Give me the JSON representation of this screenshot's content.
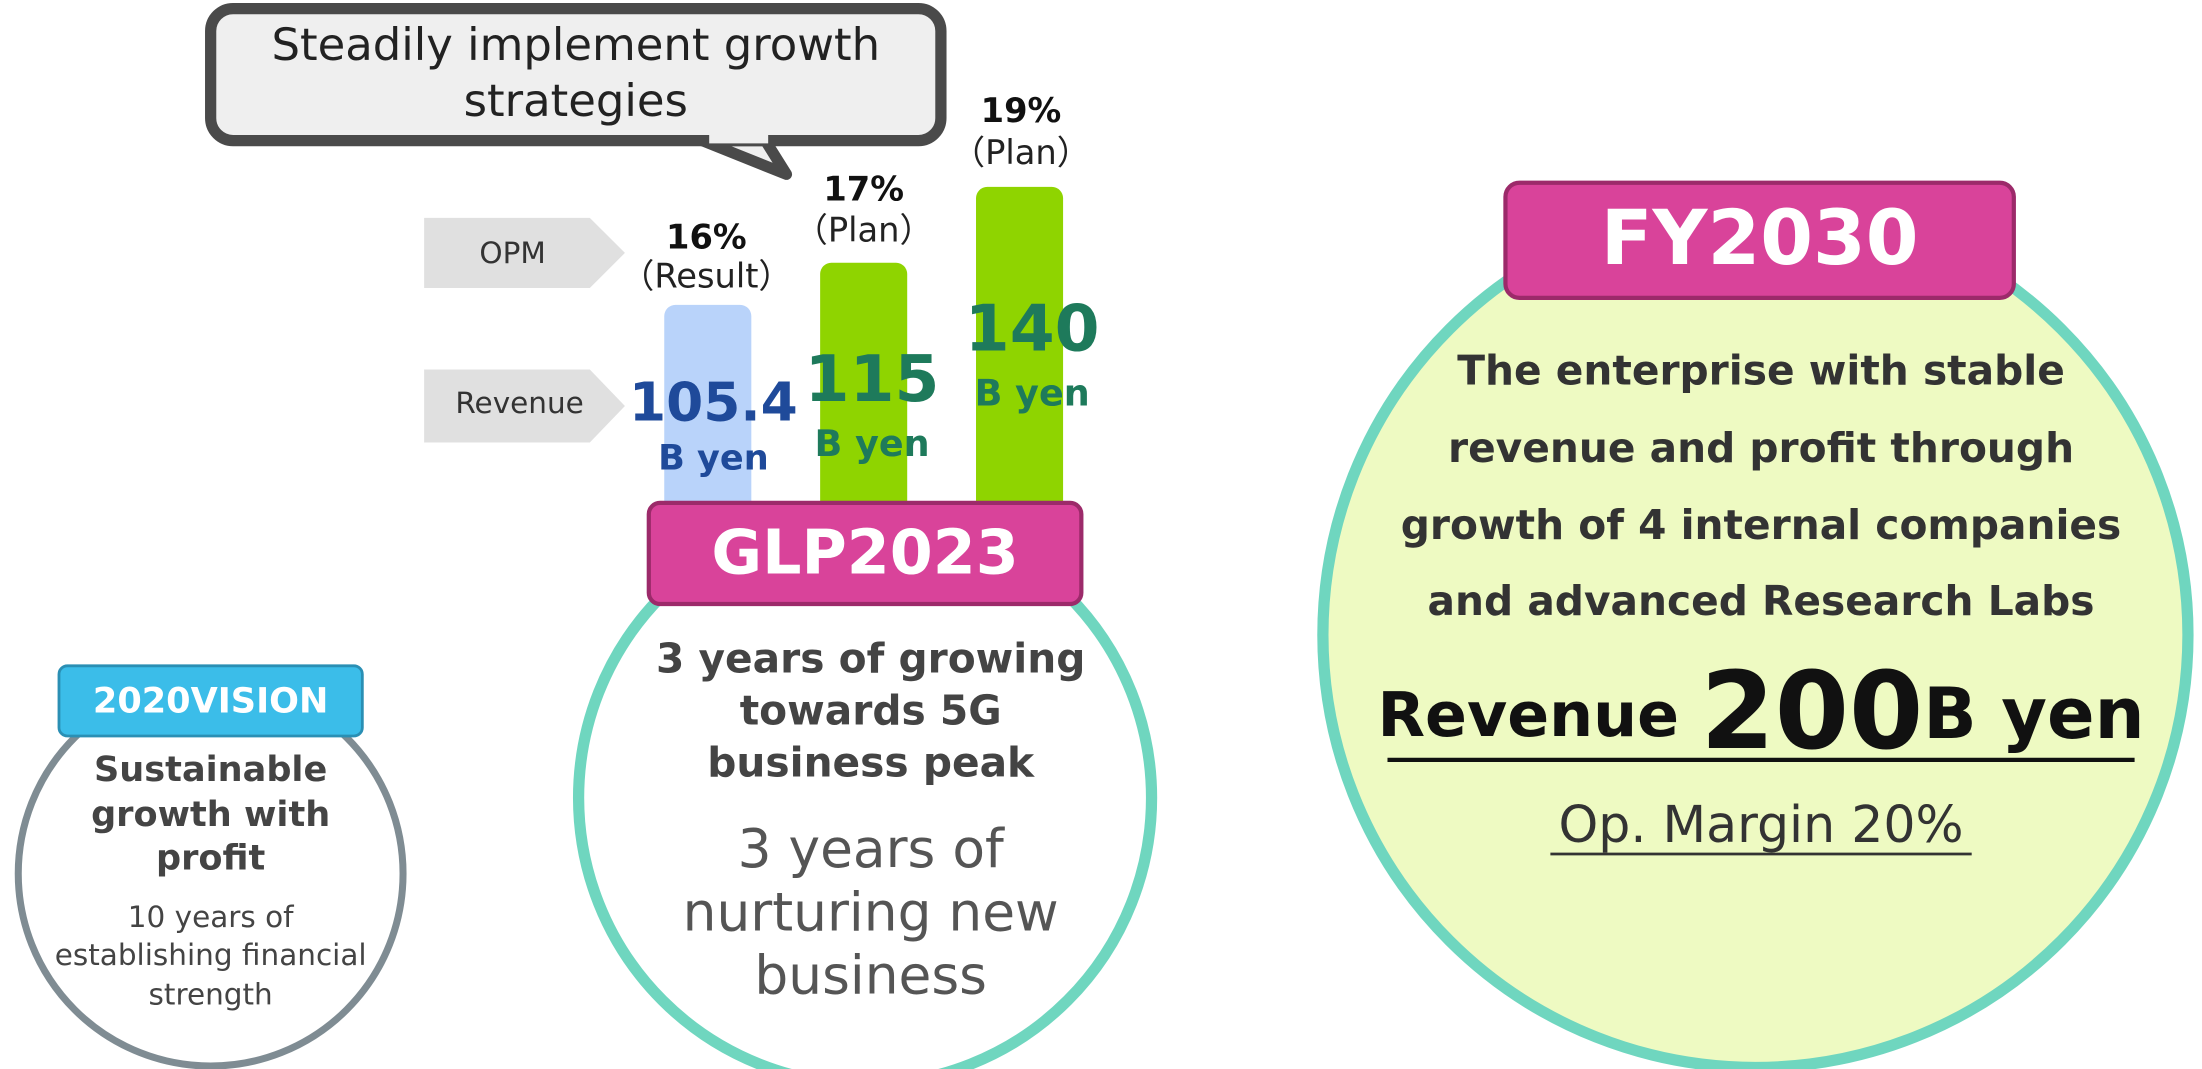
{
  "callout": [
    "Steadily implement growth",
    "strategies"
  ],
  "row_labels": [
    "OPM",
    "Revenue"
  ],
  "bars": [
    {
      "opm": "16%",
      "status": "（Result）",
      "revenue": "105.4",
      "unit": "B yen"
    },
    {
      "opm": "17%",
      "status": "（Plan）",
      "revenue": "115",
      "unit": "B yen"
    },
    {
      "opm": "19%",
      "status": "（Plan）",
      "revenue": "140",
      "unit": "B yen"
    }
  ],
  "vision2020": {
    "badge": "2020VISION",
    "title": [
      "Sustainable",
      "growth with",
      "profit"
    ],
    "text": [
      "10 years of",
      "establishing financial",
      "strength"
    ]
  },
  "glp2023": {
    "badge": "GLP2023",
    "title": [
      "3 years of growing",
      "towards 5G",
      "business peak"
    ],
    "text": [
      "3 years of",
      "nurturing new",
      "business"
    ]
  },
  "fy2030": {
    "badge": "FY2030",
    "text": [
      "The enterprise with stable",
      "revenue and profit through",
      "growth of 4 internal companies",
      "and advanced Research Labs"
    ],
    "revenue": {
      "label": "Revenue",
      "value": "200",
      "unit": "B yen"
    },
    "margin": "Op. Margin 20%"
  }
}
